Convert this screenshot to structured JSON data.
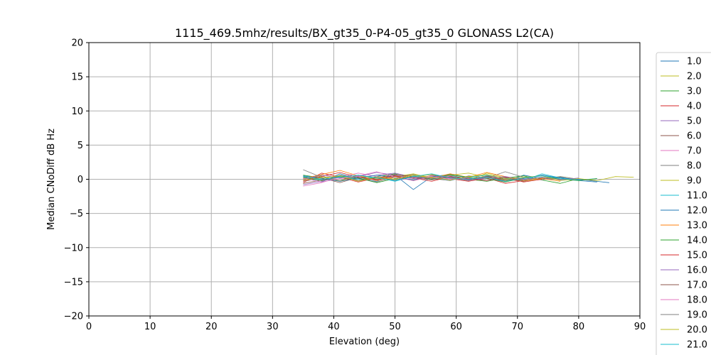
{
  "chart_data": {
    "type": "line",
    "title": "1115_469.5mhz/results/BX_gt35_0-P4-05_gt35_0 GLONASS L2(CA)",
    "xlabel": "Elevation (deg)",
    "ylabel": "Median CNoDiff dB Hz",
    "xlim": [
      0,
      90
    ],
    "ylim": [
      -20,
      20
    ],
    "xticks": [
      "0",
      "10",
      "20",
      "30",
      "40",
      "50",
      "60",
      "70",
      "80",
      "90"
    ],
    "yticks": [
      "20",
      "15",
      "10",
      "5",
      "0",
      "−5",
      "−10",
      "−15",
      "−20"
    ],
    "grid": true,
    "legend_position": "right, outside plot (cut off at bottom)",
    "series": [
      {
        "name": "1.0",
        "color": "#1f77b4",
        "x": [
          35,
          38,
          41,
          44,
          47,
          50,
          53,
          56,
          59,
          62,
          65,
          68,
          71,
          74,
          77,
          80,
          83
        ],
        "y": [
          0.3,
          -0.4,
          0.8,
          0.1,
          -0.3,
          0.6,
          -1.5,
          0.4,
          0.2,
          -0.2,
          0.5,
          -0.3,
          0.6,
          0.1,
          0.3,
          -0.2,
          -0.4
        ]
      },
      {
        "name": "2.0",
        "color": "#bcbd22",
        "x": [
          35,
          38,
          41,
          44,
          47,
          50,
          53,
          56,
          59,
          62,
          65,
          68,
          71,
          74,
          77,
          80,
          83,
          86,
          89
        ],
        "y": [
          0.1,
          0.5,
          -0.3,
          0.6,
          0.2,
          -0.1,
          0.4,
          0.7,
          0.3,
          -0.2,
          0.9,
          0.2,
          -0.3,
          0.1,
          0.4,
          0.0,
          -0.2,
          0.4,
          0.3
        ]
      },
      {
        "name": "3.0",
        "color": "#2ca02c",
        "x": [
          35,
          38,
          41,
          44,
          47,
          50,
          53,
          56,
          59,
          62,
          65,
          68,
          71,
          74,
          77,
          80
        ],
        "y": [
          0.6,
          0.2,
          0.5,
          -0.2,
          0.4,
          0.8,
          0.1,
          0.3,
          0.6,
          0.0,
          -0.3,
          0.2,
          0.5,
          -0.1,
          -0.6,
          0.1
        ]
      },
      {
        "name": "4.0",
        "color": "#d62728",
        "x": [
          35,
          38,
          41,
          44,
          47,
          50,
          53,
          56,
          59,
          62,
          65,
          68,
          71
        ],
        "y": [
          -0.5,
          0.9,
          0.3,
          -0.4,
          0.2,
          0.5,
          -0.2,
          0.4,
          0.1,
          -0.3,
          0.2,
          -0.6,
          -0.2
        ]
      },
      {
        "name": "5.0",
        "color": "#9467bd",
        "x": [
          35,
          38,
          41,
          44,
          47,
          50,
          53,
          56,
          59,
          62,
          65,
          68
        ],
        "y": [
          -0.8,
          -0.3,
          0.4,
          0.1,
          0.6,
          0.9,
          0.3,
          0.0,
          0.4,
          -0.2,
          0.3,
          -0.4
        ]
      },
      {
        "name": "6.0",
        "color": "#8c564b",
        "x": [
          35,
          38,
          41,
          44,
          47,
          50,
          53,
          56,
          59,
          62,
          65,
          68,
          71,
          74,
          77
        ],
        "y": [
          -0.3,
          0.2,
          -0.5,
          0.3,
          0.0,
          0.4,
          -0.2,
          0.6,
          0.2,
          -0.1,
          0.4,
          0.0,
          -0.3,
          0.2,
          -0.1
        ]
      },
      {
        "name": "7.0",
        "color": "#e377c2",
        "x": [
          35,
          38,
          41,
          44,
          47,
          50,
          53,
          56,
          59,
          62
        ],
        "y": [
          -1.0,
          -0.5,
          0.3,
          0.9,
          0.4,
          -0.2,
          0.2,
          0.5,
          0.1,
          -0.1
        ]
      },
      {
        "name": "8.0",
        "color": "#7f7f7f",
        "x": [
          35,
          38,
          41,
          44,
          47,
          50,
          53,
          56,
          59,
          62,
          65,
          68,
          71,
          74,
          77,
          80,
          83
        ],
        "y": [
          0.4,
          -0.2,
          0.6,
          0.2,
          -0.4,
          0.3,
          0.7,
          0.1,
          -0.2,
          0.5,
          0.2,
          1.1,
          0.3,
          -0.1,
          0.4,
          0.0,
          -0.3
        ]
      },
      {
        "name": "9.0",
        "color": "#bcbd22",
        "x": [
          35,
          38,
          41,
          44,
          47,
          50,
          53,
          56,
          59,
          62,
          65,
          68,
          71,
          74
        ],
        "y": [
          0.0,
          0.3,
          -0.2,
          0.5,
          0.1,
          0.4,
          0.8,
          0.2,
          0.6,
          0.9,
          0.3,
          -0.1,
          0.2,
          0.0
        ]
      },
      {
        "name": "11.0",
        "color": "#17becf",
        "x": [
          35,
          38,
          41,
          44,
          47,
          50,
          53,
          56,
          59,
          62,
          65,
          68,
          71,
          74,
          77,
          80,
          83
        ],
        "y": [
          0.2,
          -0.1,
          0.4,
          0.0,
          0.3,
          -0.3,
          0.5,
          0.2,
          -0.1,
          0.3,
          0.6,
          0.1,
          -0.2,
          0.8,
          0.2,
          -0.1,
          0.1
        ]
      },
      {
        "name": "12.0",
        "color": "#1f77b4",
        "x": [
          35,
          38,
          41,
          44,
          47,
          50,
          53,
          56,
          59,
          62,
          65,
          68,
          71,
          74,
          77,
          80,
          83,
          85
        ],
        "y": [
          0.5,
          0.1,
          -0.3,
          0.2,
          0.6,
          0.3,
          -0.1,
          0.4,
          0.7,
          0.2,
          -0.2,
          0.3,
          0.1,
          0.6,
          0.2,
          0.0,
          -0.3,
          -0.5
        ]
      },
      {
        "name": "13.0",
        "color": "#ff7f0e",
        "x": [
          35,
          38,
          41,
          44,
          47,
          50,
          53,
          56,
          59,
          62,
          65,
          68,
          71,
          74,
          77
        ],
        "y": [
          0.1,
          0.7,
          1.3,
          0.5,
          -0.2,
          0.3,
          0.6,
          0.2,
          0.8,
          0.3,
          1.0,
          0.4,
          -0.2,
          0.1,
          -0.3
        ]
      },
      {
        "name": "14.0",
        "color": "#2ca02c",
        "x": [
          35,
          38,
          41,
          44,
          47,
          50,
          53,
          56,
          59,
          62,
          65,
          68,
          71,
          74,
          77,
          80,
          83
        ],
        "y": [
          0.3,
          -0.2,
          0.5,
          0.2,
          -0.5,
          0.1,
          0.4,
          0.0,
          0.7,
          0.3,
          0.1,
          -0.4,
          0.2,
          0.5,
          0.0,
          -0.2,
          0.1
        ]
      },
      {
        "name": "15.0",
        "color": "#d62728",
        "x": [
          35,
          38,
          41,
          44,
          47,
          50,
          53,
          56,
          59,
          62,
          65,
          68,
          71,
          74
        ],
        "y": [
          -0.2,
          0.4,
          1.0,
          0.3,
          -0.1,
          0.5,
          0.2,
          -0.3,
          0.4,
          0.1,
          -0.2,
          0.3,
          -0.4,
          0.0
        ]
      },
      {
        "name": "16.0",
        "color": "#9467bd",
        "x": [
          35,
          38,
          41,
          44,
          47,
          50,
          53,
          56,
          59,
          62,
          65,
          68,
          71,
          74,
          77,
          80
        ],
        "y": [
          0.0,
          0.6,
          0.2,
          0.4,
          1.0,
          0.6,
          0.1,
          0.3,
          0.5,
          -0.1,
          0.2,
          0.4,
          0.0,
          0.3,
          -0.1,
          0.2
        ]
      },
      {
        "name": "17.0",
        "color": "#8c564b",
        "x": [
          35,
          38,
          41,
          44,
          47,
          50,
          53,
          56,
          59,
          62,
          65,
          68,
          71
        ],
        "y": [
          -0.6,
          -0.1,
          0.3,
          -0.2,
          0.2,
          0.7,
          0.4,
          -0.1,
          0.3,
          0.0,
          0.4,
          -0.2,
          0.1
        ]
      },
      {
        "name": "18.0",
        "color": "#e377c2",
        "x": [
          35,
          38,
          41,
          44,
          47,
          50,
          53,
          56,
          59,
          62
        ],
        "y": [
          0.2,
          -0.4,
          0.1,
          0.5,
          1.1,
          0.3,
          -0.2,
          0.4,
          0.0,
          0.2
        ]
      },
      {
        "name": "19.0",
        "color": "#7f7f7f",
        "x": [
          35,
          38,
          41,
          44,
          47,
          50,
          53,
          56,
          59,
          62,
          65,
          68,
          71,
          74,
          77,
          80
        ],
        "y": [
          1.4,
          0.3,
          -0.2,
          0.6,
          0.2,
          -0.1,
          0.4,
          0.1,
          0.3,
          -0.2,
          0.5,
          0.2,
          -0.1,
          0.3,
          0.0,
          -0.1
        ]
      },
      {
        "name": "20.0",
        "color": "#bcbd22",
        "x": [
          35,
          38,
          41,
          44,
          47,
          50,
          53,
          56,
          59,
          62,
          65,
          68,
          71,
          74,
          77,
          80,
          83
        ],
        "y": [
          -0.1,
          0.2,
          0.5,
          -0.3,
          0.3,
          0.0,
          0.6,
          0.3,
          -0.1,
          0.4,
          0.7,
          0.1,
          0.3,
          0.5,
          -0.2,
          0.1,
          -0.2
        ]
      },
      {
        "name": "21.0",
        "color": "#17becf",
        "x": [
          35,
          38,
          41,
          44,
          47,
          50,
          53,
          56,
          59,
          62,
          65,
          68,
          71,
          74,
          77,
          80
        ],
        "y": [
          0.4,
          0.0,
          0.3,
          0.6,
          0.2,
          -0.2,
          0.4,
          0.8,
          0.2,
          0.0,
          0.3,
          -0.3,
          0.2,
          0.5,
          0.1,
          -0.1
        ]
      }
    ]
  }
}
